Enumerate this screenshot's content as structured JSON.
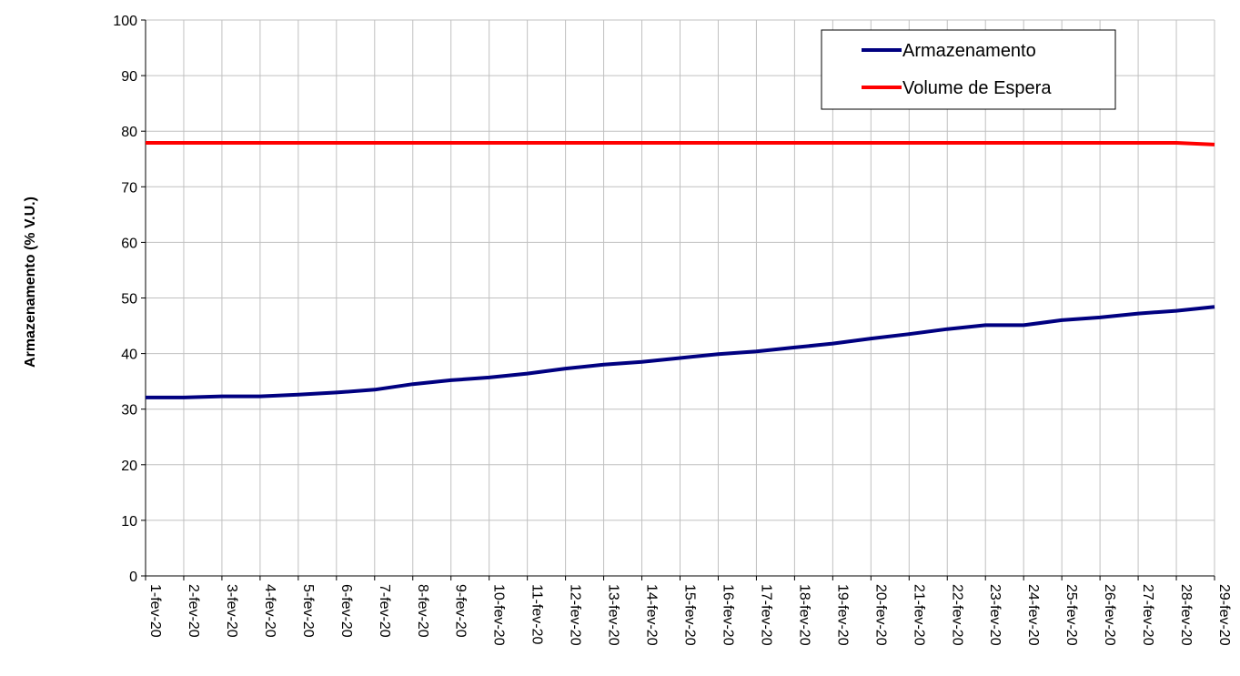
{
  "chart_data": {
    "type": "line",
    "title": "",
    "xlabel": "",
    "ylabel": "Armazenamento (% V.U.)",
    "ylim": [
      0,
      100
    ],
    "yticks": [
      0,
      10,
      20,
      30,
      40,
      50,
      60,
      70,
      80,
      90,
      100
    ],
    "grid": true,
    "legend_position": "top-right",
    "categories": [
      "1-fev-20",
      "2-fev-20",
      "3-fev-20",
      "4-fev-20",
      "5-fev-20",
      "6-fev-20",
      "7-fev-20",
      "8-fev-20",
      "9-fev-20",
      "10-fev-20",
      "11-fev-20",
      "12-fev-20",
      "13-fev-20",
      "14-fev-20",
      "15-fev-20",
      "16-fev-20",
      "17-fev-20",
      "18-fev-20",
      "19-fev-20",
      "20-fev-20",
      "21-fev-20",
      "22-fev-20",
      "23-fev-20",
      "24-fev-20",
      "25-fev-20",
      "26-fev-20",
      "27-fev-20",
      "28-fev-20",
      "29-fev-20"
    ],
    "series": [
      {
        "name": "Armazenamento",
        "color": "#000080",
        "values": [
          32.1,
          32.1,
          32.3,
          32.3,
          32.6,
          33.0,
          33.5,
          34.5,
          35.2,
          35.7,
          36.4,
          37.3,
          38.0,
          38.5,
          39.2,
          39.9,
          40.4,
          41.1,
          41.8,
          42.7,
          43.5,
          44.4,
          45.1,
          45.1,
          46.0,
          46.5,
          47.2,
          47.7,
          48.4
        ]
      },
      {
        "name": "Volume de Espera",
        "color": "#ff0000",
        "values": [
          77.9,
          77.9,
          77.9,
          77.9,
          77.9,
          77.9,
          77.9,
          77.9,
          77.9,
          77.9,
          77.9,
          77.9,
          77.9,
          77.9,
          77.9,
          77.9,
          77.9,
          77.9,
          77.9,
          77.9,
          77.9,
          77.9,
          77.9,
          77.9,
          77.9,
          77.9,
          77.9,
          77.9,
          77.6
        ]
      }
    ]
  }
}
